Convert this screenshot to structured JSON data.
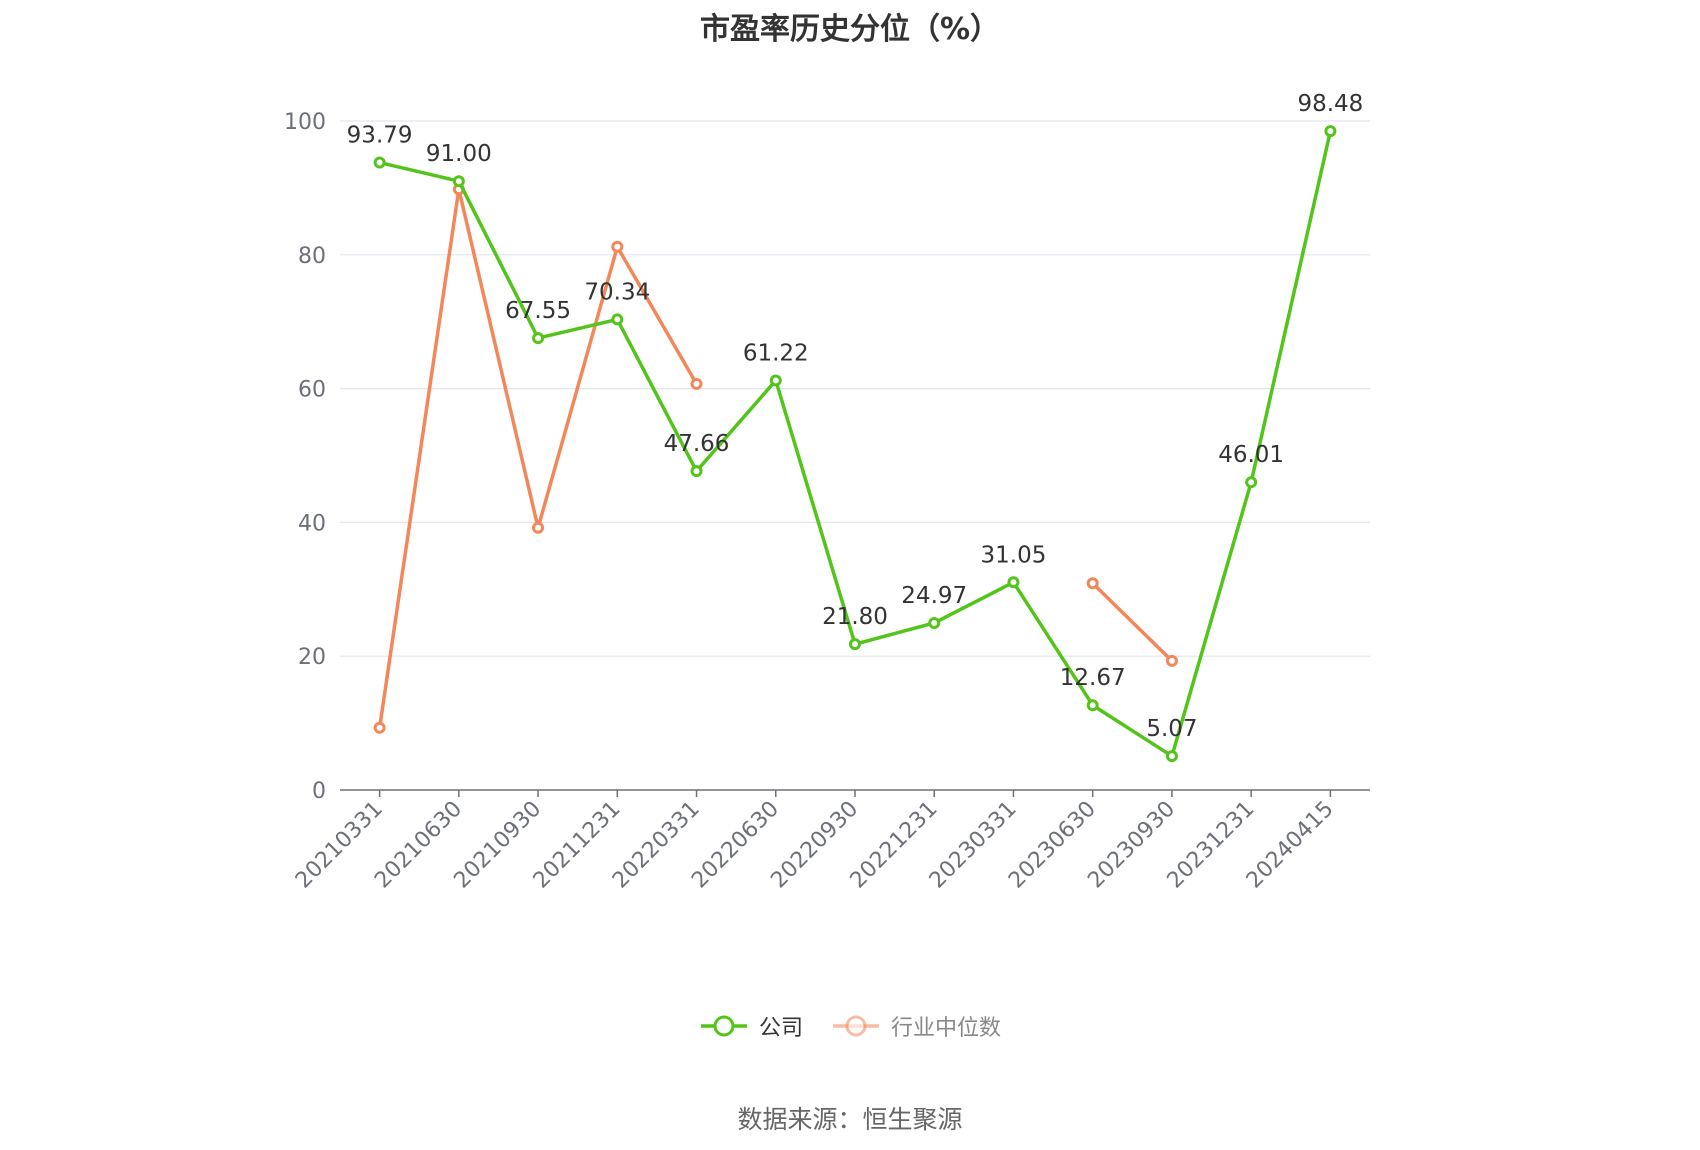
{
  "chart_data": {
    "type": "line",
    "title": "市盈率历史分位（%）",
    "xlabel": "",
    "ylabel": "",
    "ylim": [
      0,
      100
    ],
    "yticks": [
      0,
      20,
      40,
      60,
      80,
      100
    ],
    "grid": true,
    "categories": [
      "20210331",
      "20210630",
      "20210930",
      "20211231",
      "20220331",
      "20220630",
      "20220930",
      "20221231",
      "20230331",
      "20230630",
      "20230930",
      "20231231",
      "20240415"
    ],
    "series": [
      {
        "name": "公司",
        "color": "#52c41a",
        "values": [
          93.79,
          91.0,
          67.55,
          70.34,
          47.66,
          61.22,
          21.8,
          24.97,
          31.05,
          12.67,
          5.07,
          46.01,
          98.48
        ],
        "labels": [
          "93.79",
          "91.00",
          "67.55",
          "70.34",
          "47.66",
          "61.22",
          "21.80",
          "24.97",
          "31.05",
          "12.67",
          "5.07",
          "46.01",
          "98.48"
        ]
      },
      {
        "name": "行业中位数",
        "color": "#f4875a",
        "values": [
          9.3,
          89.8,
          39.2,
          81.2,
          60.7,
          null,
          null,
          null,
          null,
          30.9,
          19.3,
          null,
          null
        ]
      }
    ],
    "legend": {
      "position": "bottom",
      "inactive": [
        "行业中位数"
      ]
    }
  },
  "footer": {
    "source": "数据来源：恒生聚源"
  }
}
